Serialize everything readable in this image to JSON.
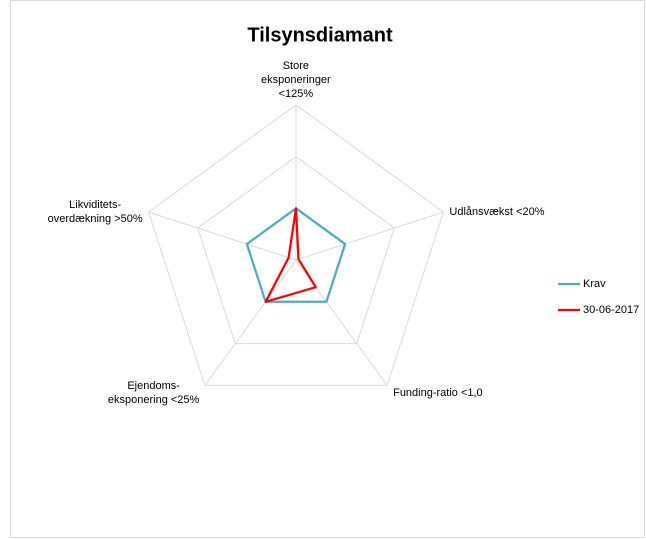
{
  "chart_data": {
    "type": "radar",
    "title": "Tilsynsdiamant",
    "categories": [
      "Store\neksponeringer\n<125%",
      "Udlånsvækst <20%",
      "Funding-ratio <1,0",
      "Ejendoms-\neksponering <25%",
      "Likviditets-\noverdækning >50%"
    ],
    "series": [
      {
        "name": "Krav",
        "color": "#4bacc6",
        "values": [
          1,
          1,
          1,
          1,
          1
        ]
      },
      {
        "name": "30-06-2017",
        "color": "#ff0000",
        "values": [
          1,
          0.05,
          0.65,
          1,
          0.15
        ]
      }
    ],
    "rlim": [
      0,
      3
    ],
    "rticks": [
      0,
      1,
      2,
      3
    ],
    "grid": true,
    "legend": "right"
  }
}
